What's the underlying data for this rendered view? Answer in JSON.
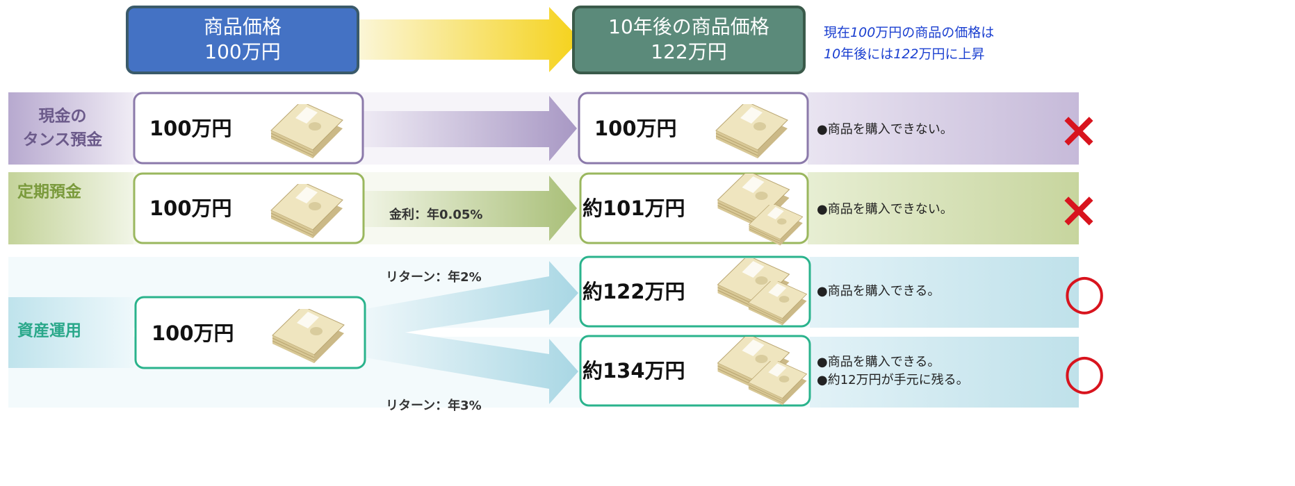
{
  "header": {
    "current": {
      "title": "商品価格",
      "price": "100万円"
    },
    "future": {
      "title": "10年後の商品価格",
      "price": "122万円"
    },
    "note": [
      [
        {
          "text": "現在",
          "italic": false
        },
        {
          "text": "100",
          "italic": true
        },
        {
          "text": "万円の商品の価格は",
          "italic": false
        }
      ],
      [
        {
          "text": "10",
          "italic": true
        },
        {
          "text": "年後には",
          "italic": false
        },
        {
          "text": "122",
          "italic": true
        },
        {
          "text": "万円に上昇",
          "italic": false
        }
      ]
    ]
  },
  "rows": [
    {
      "label": [
        "現金の",
        "タンス預金"
      ],
      "start": "100万円",
      "end": "100万円",
      "result": [
        "●商品を購入できない。"
      ],
      "mark": "×"
    },
    {
      "label": [
        "定期預金"
      ],
      "start": "100万円",
      "rate": "金利：年0.05%",
      "end": "約101万円",
      "result": [
        "●商品を購入できない。"
      ],
      "mark": "×"
    },
    {
      "label": [
        "資産運用"
      ],
      "start": "100万円",
      "branches": [
        {
          "rate": "リターン：年2%",
          "end": "約122万円",
          "result": [
            "●商品を購入できる。"
          ],
          "mark": "○"
        },
        {
          "rate": "リターン：年3%",
          "end": "約134万円",
          "result": [
            "●商品を購入できる。",
            "●約12万円が手元に残る。"
          ],
          "mark": "○"
        }
      ]
    }
  ]
}
